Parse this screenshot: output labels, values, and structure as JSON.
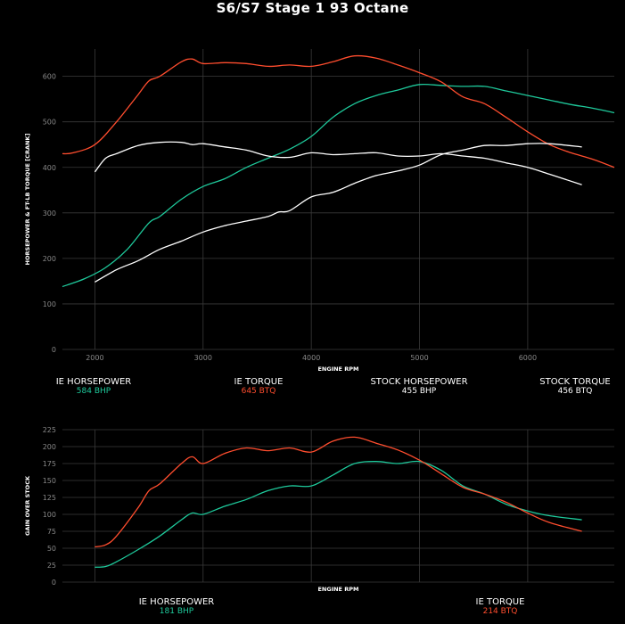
{
  "title": "S6/S7 Stage 1 93 Octane",
  "legend_top": [
    {
      "name": "IE HORSEPOWER",
      "value": "584 BHP",
      "color": "#1ec99b"
    },
    {
      "name": "IE TORQUE",
      "value": "645 BTQ",
      "color": "#ff4d2e"
    },
    {
      "name": "STOCK HORSEPOWER",
      "value": "455 BHP",
      "color": "#ffffff"
    },
    {
      "name": "STOCK TORQUE",
      "value": "456 BTQ",
      "color": "#ffffff"
    }
  ],
  "legend_bottom": [
    {
      "name": "IE HORSEPOWER",
      "value": "181 BHP",
      "color": "#1ec99b"
    },
    {
      "name": "IE TORQUE",
      "value": "214 BTQ",
      "color": "#ff4d2e"
    }
  ],
  "chart_data": [
    {
      "type": "line",
      "xlabel": "ENGINE RPM",
      "ylabel": "HORSEPOWER & FT-LB TORQUE [CRANK]",
      "xlim": [
        1700,
        6800
      ],
      "ylim": [
        0,
        660
      ],
      "xticks": [
        2000,
        3000,
        4000,
        5000,
        6000
      ],
      "yticks": [
        0,
        100,
        200,
        300,
        400,
        500,
        600
      ],
      "grid": true,
      "series": [
        {
          "name": "IE HORSEPOWER",
          "color": "#1ec99b",
          "x": [
            1700,
            1900,
            2100,
            2300,
            2500,
            2600,
            2800,
            3000,
            3200,
            3400,
            3600,
            3800,
            4000,
            4200,
            4400,
            4600,
            4800,
            5000,
            5200,
            5400,
            5600,
            5800,
            6000,
            6200,
            6400,
            6600,
            6800
          ],
          "y": [
            138,
            155,
            180,
            220,
            278,
            292,
            330,
            358,
            375,
            400,
            420,
            440,
            468,
            510,
            540,
            558,
            570,
            582,
            580,
            578,
            578,
            568,
            558,
            548,
            538,
            530,
            520
          ]
        },
        {
          "name": "IE TORQUE",
          "color": "#ff4d2e",
          "x": [
            1700,
            1800,
            2000,
            2200,
            2400,
            2500,
            2600,
            2800,
            2900,
            3000,
            3200,
            3400,
            3600,
            3800,
            4000,
            4200,
            4400,
            4600,
            4800,
            5000,
            5200,
            5400,
            5600,
            5800,
            6000,
            6200,
            6400,
            6600,
            6800
          ],
          "y": [
            430,
            432,
            450,
            500,
            560,
            590,
            600,
            632,
            638,
            628,
            630,
            628,
            622,
            625,
            622,
            632,
            645,
            640,
            625,
            608,
            588,
            555,
            540,
            510,
            478,
            450,
            432,
            418,
            400
          ]
        },
        {
          "name": "STOCK HORSEPOWER",
          "color": "#ffffff",
          "x": [
            2000,
            2200,
            2400,
            2600,
            2800,
            3000,
            3200,
            3400,
            3600,
            3700,
            3800,
            4000,
            4200,
            4400,
            4600,
            4800,
            5000,
            5200,
            5400,
            5600,
            5800,
            6000,
            6200,
            6500
          ],
          "y": [
            148,
            175,
            195,
            220,
            238,
            258,
            272,
            282,
            292,
            302,
            305,
            335,
            345,
            365,
            382,
            392,
            405,
            428,
            438,
            448,
            448,
            452,
            452,
            445
          ]
        },
        {
          "name": "STOCK TORQUE",
          "color": "#ffffff",
          "x": [
            2000,
            2100,
            2200,
            2400,
            2600,
            2800,
            2900,
            3000,
            3200,
            3400,
            3600,
            3800,
            4000,
            4200,
            4400,
            4600,
            4800,
            5000,
            5200,
            5400,
            5600,
            5800,
            6000,
            6200,
            6500
          ],
          "y": [
            390,
            420,
            430,
            448,
            455,
            455,
            450,
            452,
            445,
            438,
            425,
            422,
            432,
            428,
            430,
            432,
            425,
            425,
            430,
            425,
            420,
            410,
            400,
            385,
            362
          ]
        }
      ]
    },
    {
      "type": "line",
      "xlabel": "ENGINE RPM",
      "ylabel": "GAIN OVER STOCK",
      "xlim": [
        1700,
        6800
      ],
      "ylim": [
        0,
        225
      ],
      "xticks": [
        2000,
        3000,
        4000,
        5000,
        6000
      ],
      "yticks": [
        0,
        25,
        50,
        75,
        100,
        125,
        150,
        175,
        200,
        225
      ],
      "grid": true,
      "series": [
        {
          "name": "IE HORSEPOWER",
          "color": "#1ec99b",
          "x": [
            2000,
            2100,
            2200,
            2400,
            2600,
            2800,
            2900,
            3000,
            3200,
            3400,
            3600,
            3800,
            4000,
            4200,
            4400,
            4600,
            4800,
            5000,
            5200,
            5400,
            5600,
            5800,
            6000,
            6200,
            6500
          ],
          "y": [
            22,
            23,
            30,
            48,
            68,
            92,
            102,
            100,
            112,
            122,
            135,
            142,
            142,
            158,
            175,
            178,
            175,
            178,
            165,
            142,
            130,
            115,
            105,
            98,
            92
          ]
        },
        {
          "name": "IE TORQUE",
          "color": "#ff4d2e",
          "x": [
            2000,
            2100,
            2200,
            2400,
            2500,
            2600,
            2800,
            2900,
            3000,
            3200,
            3400,
            3600,
            3800,
            4000,
            4200,
            4400,
            4600,
            4800,
            5000,
            5200,
            5400,
            5600,
            5800,
            6000,
            6200,
            6500
          ],
          "y": [
            52,
            55,
            68,
            110,
            135,
            145,
            175,
            185,
            175,
            190,
            198,
            194,
            198,
            192,
            208,
            214,
            205,
            195,
            180,
            160,
            140,
            130,
            118,
            102,
            88,
            75
          ]
        }
      ]
    }
  ]
}
